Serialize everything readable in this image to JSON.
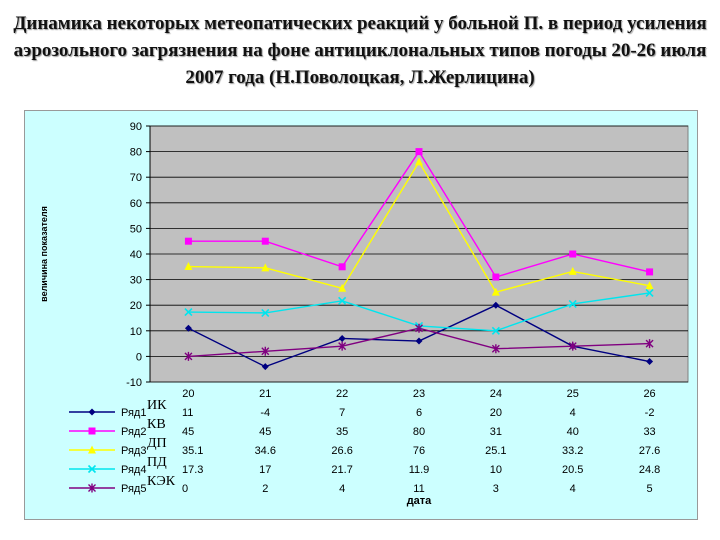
{
  "slide": {
    "title": "Динамика некоторых метеопатических реакций у больной П. в период усиления аэрозольного загрязнения на фоне антициклональных типов погоды 20-26 июля 2007 года (Н.Поволоцкая, Л.Жерлицина)"
  },
  "chart_data": {
    "type": "line",
    "title": "",
    "xlabel": "дата",
    "ylabel": "величина показателя",
    "categories": [
      "20",
      "21",
      "22",
      "23",
      "24",
      "25",
      "26"
    ],
    "ylim": [
      -10,
      90
    ],
    "yticks": [
      -10,
      0,
      10,
      20,
      30,
      40,
      50,
      60,
      70,
      80,
      90
    ],
    "grid": true,
    "legend": "bottom data table",
    "series": [
      {
        "name": "Ряд1",
        "annotation": "ИК",
        "color": "#000080",
        "marker": "diamond",
        "values": [
          11,
          -4,
          7,
          6,
          20,
          4,
          -2
        ],
        "labels": [
          "11",
          "-4",
          "7",
          "6",
          "20",
          "4",
          "-2"
        ]
      },
      {
        "name": "Ряд2",
        "annotation": "КВ",
        "color": "#ff00ff",
        "marker": "square",
        "values": [
          45,
          45,
          35,
          80,
          31,
          40,
          33
        ],
        "labels": [
          "45",
          "45",
          "35",
          "80",
          "31",
          "40",
          "33"
        ]
      },
      {
        "name": "Ряд3",
        "annotation": "ДП",
        "color": "#ffff00",
        "marker": "triangle",
        "values": [
          35.1,
          34.6,
          26.6,
          76,
          25.1,
          33.2,
          27.6
        ],
        "labels": [
          "35.1",
          "34.6",
          "26.6",
          "76",
          "25.1",
          "33.2",
          "27.6"
        ]
      },
      {
        "name": "Ряд4",
        "annotation": "ПД",
        "color": "#00e5ee",
        "marker": "x",
        "values": [
          17.3,
          17,
          21.7,
          11.9,
          10,
          20.5,
          24.8
        ],
        "labels": [
          "17.3",
          "17",
          "21.7",
          "11.9",
          "10",
          "20.5",
          "24.8"
        ]
      },
      {
        "name": "Ряд5",
        "annotation": "КЭК",
        "color": "#800080",
        "marker": "star",
        "values": [
          0,
          2,
          4,
          11,
          3,
          4,
          5
        ],
        "labels": [
          "0",
          "2",
          "4",
          "11",
          "3",
          "4",
          "5"
        ]
      }
    ]
  }
}
